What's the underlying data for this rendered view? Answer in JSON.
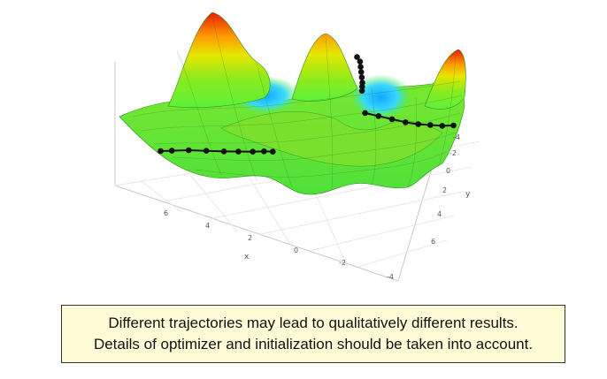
{
  "chart_data": {
    "type": "surface",
    "title": "",
    "xlabel": "x",
    "ylabel": "y",
    "x_ticks": [
      "6",
      "4",
      "2",
      "0",
      "-2",
      "-4"
    ],
    "y_ticks": [
      "-4",
      "-2",
      "0",
      "2",
      "4",
      "6"
    ],
    "xlim": [
      -5,
      8
    ],
    "ylim": [
      -5,
      7
    ],
    "colormap": [
      "#11a7ff",
      "#39d8ff",
      "#5cf23a",
      "#8aea1f",
      "#e6e600",
      "#ff9a00",
      "#e81b00"
    ],
    "grid": true,
    "trajectories": [
      {
        "points": [
          [
            6.0,
            -1.0
          ],
          [
            5.6,
            -0.8
          ],
          [
            5.0,
            -0.5
          ],
          [
            4.4,
            -0.1
          ],
          [
            3.8,
            0.3
          ],
          [
            3.3,
            0.6
          ],
          [
            2.8,
            0.9
          ],
          [
            2.4,
            1.1
          ],
          [
            2.1,
            1.3
          ]
        ]
      },
      {
        "points": [
          [
            -3.0,
            -4.0
          ],
          [
            -3.0,
            -3.6
          ],
          [
            -2.9,
            -3.2
          ],
          [
            -2.8,
            -2.8
          ],
          [
            -2.7,
            -2.4
          ],
          [
            -2.6,
            -2.0
          ],
          [
            -2.5,
            -1.7
          ],
          [
            -2.4,
            -1.4
          ]
        ]
      },
      {
        "points": [
          [
            -2.0,
            0.3
          ],
          [
            -2.4,
            0.8
          ],
          [
            -2.8,
            1.3
          ],
          [
            -3.2,
            1.8
          ],
          [
            -3.6,
            2.2
          ],
          [
            -4.0,
            2.5
          ],
          [
            -4.4,
            2.8
          ],
          [
            -4.8,
            3.0
          ]
        ]
      }
    ]
  },
  "caption": {
    "line1": "Different trajectories may lead to qualitatively different results.",
    "line2": "Details of optimizer and initialization should be taken into account."
  }
}
